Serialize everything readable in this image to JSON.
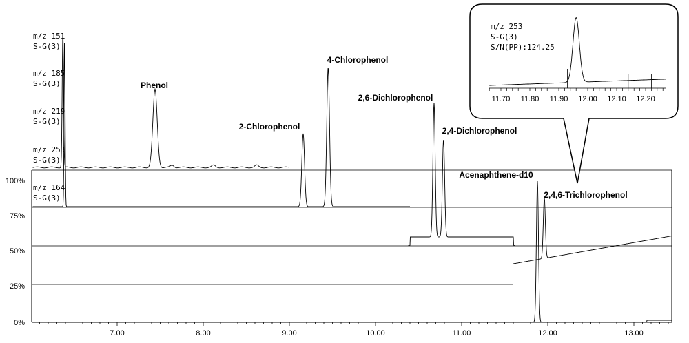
{
  "chart_data": {
    "type": "line",
    "title": "",
    "xlabel": "",
    "ylabel": "",
    "xlim": [
      6.0,
      13.45
    ],
    "x_ticks": [
      "7.00",
      "8.00",
      "9.00",
      "10.00",
      "11.00",
      "12.00",
      "13.00"
    ],
    "y_ticks": [
      "0%",
      "25%",
      "50%",
      "75%",
      "100%"
    ],
    "traces": [
      {
        "mz": "m/z 151",
        "group": "S-G(3)"
      },
      {
        "mz": "m/z 185",
        "group": "S-G(3)"
      },
      {
        "mz": "m/z 219",
        "group": "S-G(3)"
      },
      {
        "mz": "m/z 253",
        "group": "S-G(3)"
      },
      {
        "mz": "m/z 164",
        "group": "S-G(3)"
      }
    ],
    "peaks": [
      {
        "name": "Phenol",
        "rt": 7.44
      },
      {
        "name": "2-Chlorophenol",
        "rt": 9.16
      },
      {
        "name": "4-Chlorophenol",
        "rt": 9.45
      },
      {
        "name": "2,6-Dichlorophenol",
        "rt": 10.68
      },
      {
        "name": "2,4-Dichlorophenol",
        "rt": 10.79
      },
      {
        "name": "Acenaphthene-d10",
        "rt": 11.88
      },
      {
        "name": "2,4,6-Trichlorophenol",
        "rt": 11.96
      }
    ],
    "inset": {
      "lines": [
        "m/z 253",
        "S-G(3)",
        "S/N(PP):124.25"
      ],
      "x_ticks": [
        "11.70",
        "11.80",
        "11.90",
        "12.00",
        "12.10",
        "12.20"
      ],
      "xlim": [
        11.66,
        12.27
      ],
      "peak_rt": 11.96
    }
  }
}
